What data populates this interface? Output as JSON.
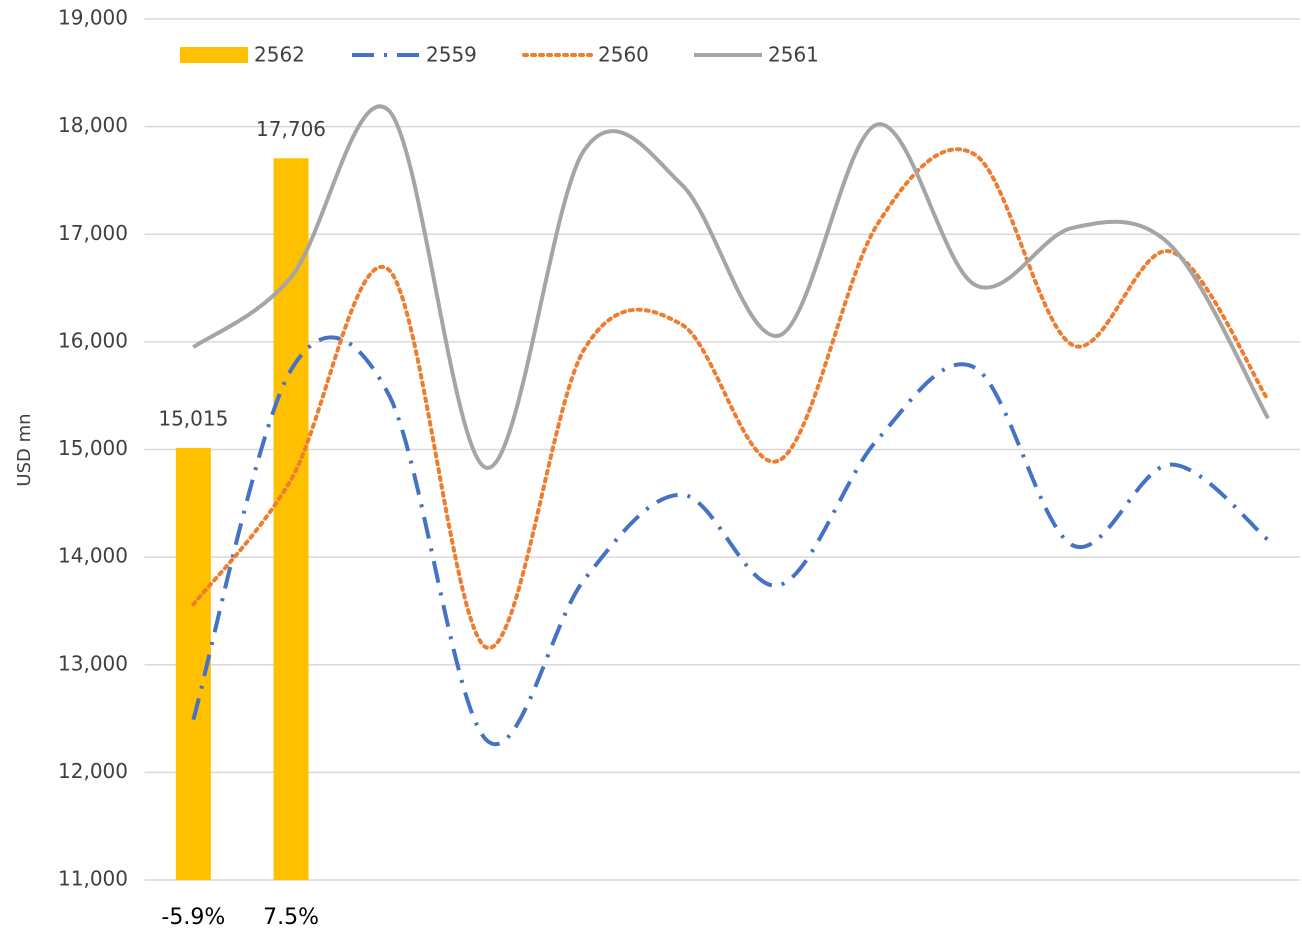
{
  "chart_data": {
    "type": "combo",
    "y_label": "USD mn",
    "categories": [
      "-5.9%",
      "7.5%",
      null,
      null,
      null,
      null,
      null,
      null,
      null,
      null,
      null,
      null
    ],
    "series": [
      {
        "name": "2562",
        "type": "bar",
        "color": "#FFC000",
        "values": [
          15015,
          17706,
          null,
          null,
          null,
          null,
          null,
          null,
          null,
          null,
          null,
          null
        ],
        "value_labels": [
          "15,015",
          "17,706",
          null,
          null,
          null,
          null,
          null,
          null,
          null,
          null,
          null,
          null
        ]
      },
      {
        "name": "2559",
        "type": "line",
        "style": "dash-dot",
        "color": "#4472C4",
        "values": [
          12490,
          15740,
          15510,
          12300,
          13790,
          14580,
          13740,
          15090,
          15760,
          14110,
          14860,
          14160
        ]
      },
      {
        "name": "2560",
        "type": "line",
        "style": "dotted",
        "color": "#ED7D31",
        "values": [
          13560,
          14720,
          16670,
          13160,
          15930,
          16160,
          14900,
          17090,
          17740,
          15970,
          16840,
          15460
        ]
      },
      {
        "name": "2561",
        "type": "line",
        "style": "solid",
        "color": "#A5A5A5",
        "values": [
          15950,
          16600,
          18150,
          14830,
          17780,
          17460,
          16060,
          18020,
          16530,
          17060,
          16900,
          15290
        ]
      }
    ],
    "ylim": [
      11000,
      19000
    ],
    "yticks": [
      {
        "value": 11000,
        "label": "11,000"
      },
      {
        "value": 12000,
        "label": "12,000"
      },
      {
        "value": 13000,
        "label": "13,000"
      },
      {
        "value": 14000,
        "label": "14,000"
      },
      {
        "value": 15000,
        "label": "15,000"
      },
      {
        "value": 16000,
        "label": "16,000"
      },
      {
        "value": 17000,
        "label": "17,000"
      },
      {
        "value": 18000,
        "label": "18,000"
      },
      {
        "value": 19000,
        "label": "19,000"
      }
    ],
    "grid": true,
    "legend": "top"
  }
}
